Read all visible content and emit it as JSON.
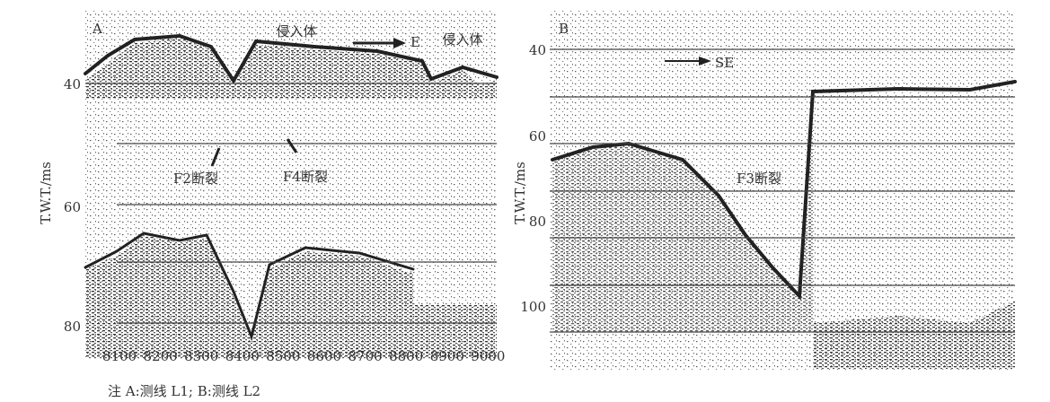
{
  "panels": [
    {
      "label": "A",
      "y_axis_label": "T.W.T./ms",
      "y_ticks": [
        "40",
        "60",
        "80"
      ],
      "x_ticks": [
        "8100",
        "8200",
        "8300",
        "8400",
        "8500",
        "8600",
        "8700",
        "8800",
        "8900",
        "9000"
      ],
      "annotations": {
        "intrusion_1": "侵入体",
        "direction": "E",
        "intrusion_2": "侵入体",
        "fault_1": "F2断裂",
        "fault_2": "F4断裂"
      }
    },
    {
      "label": "B",
      "y_axis_label": "T.W.T./ms",
      "y_ticks": [
        "40",
        "60",
        "80",
        "100"
      ],
      "annotations": {
        "direction": "SE",
        "fault_1": "F3断裂"
      }
    }
  ],
  "caption": "注 A:测线 L1; B:测线 L2"
}
